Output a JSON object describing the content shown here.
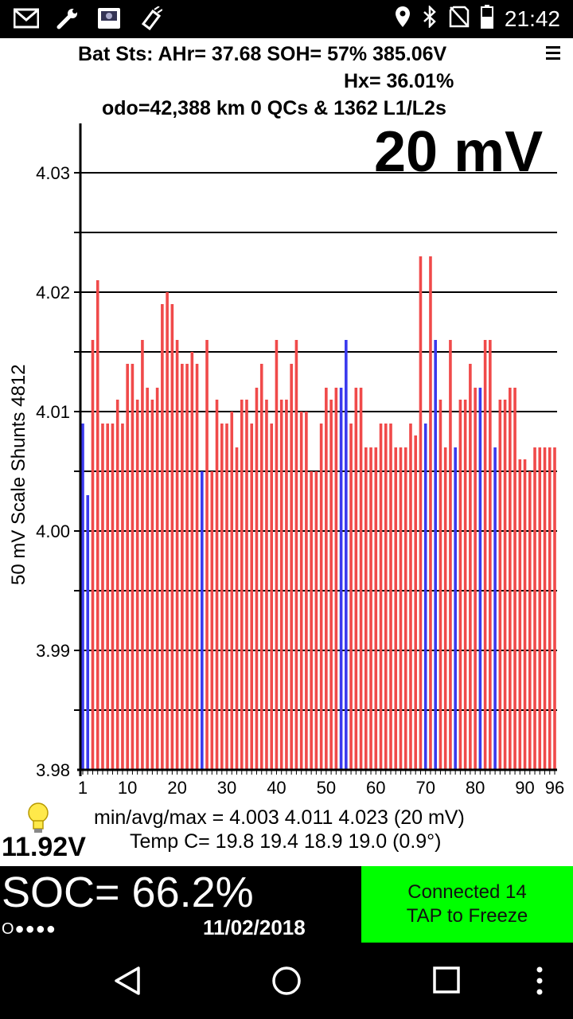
{
  "status_bar": {
    "time": "21:42",
    "left_icons": [
      "gmail-icon",
      "wrench-icon",
      "scanner-app-icon",
      "obd-dongle-icon"
    ],
    "right_icons": [
      "location-icon",
      "bluetooth-icon",
      "no-signal-icon",
      "battery-icon"
    ]
  },
  "header": {
    "line1": "Bat Sts: AHr= 37.68 SOH= 57% 385.06V",
    "line2": "Hx= 36.01%",
    "line3": "odo=42,388 km 0 QCs & 1362 L1/L2s"
  },
  "scale_label": "20 mV",
  "colors": {
    "normal_bar": "#f04a4a",
    "shunt_bar": "#3a3aee",
    "connected": "#00ff00",
    "background": "#ffffff",
    "panel": "#000000"
  },
  "chart_data": {
    "type": "bar",
    "ylabel": "50 mV Scale   Shunts 4812",
    "ylim": [
      3.98,
      4.035
    ],
    "yticks": [
      "4.03",
      "4.02",
      "4.01",
      "4.00",
      "3.99",
      "3.98"
    ],
    "gridlines": [
      3.985,
      3.99,
      3.995,
      4.0,
      4.005,
      4.01,
      4.015,
      4.02,
      4.025,
      4.03
    ],
    "xticks": [
      "1",
      "10",
      "20",
      "30",
      "40",
      "50",
      "60",
      "70",
      "80",
      "90",
      "96"
    ],
    "x_range": [
      1,
      96
    ],
    "cells": [
      1,
      2,
      3,
      4,
      5,
      6,
      7,
      8,
      9,
      10,
      11,
      12,
      13,
      14,
      15,
      16,
      17,
      18,
      19,
      20,
      21,
      22,
      23,
      24,
      25,
      26,
      27,
      28,
      29,
      30,
      31,
      32,
      33,
      34,
      35,
      36,
      37,
      38,
      39,
      40,
      41,
      42,
      43,
      44,
      45,
      46,
      47,
      48,
      49,
      50,
      51,
      52,
      53,
      54,
      55,
      56,
      57,
      58,
      59,
      60,
      61,
      62,
      63,
      64,
      65,
      66,
      67,
      68,
      69,
      70,
      71,
      72,
      73,
      74,
      75,
      76,
      77,
      78,
      79,
      80,
      81,
      82,
      83,
      84,
      85,
      86,
      87,
      88,
      89,
      90,
      91,
      92,
      93,
      94,
      95,
      96
    ],
    "voltages": [
      4.009,
      4.003,
      4.016,
      4.021,
      4.009,
      4.009,
      4.009,
      4.011,
      4.009,
      4.014,
      4.014,
      4.011,
      4.016,
      4.012,
      4.011,
      4.012,
      4.019,
      4.02,
      4.019,
      4.016,
      4.014,
      4.014,
      4.015,
      4.014,
      4.005,
      4.016,
      4.005,
      4.011,
      4.009,
      4.009,
      4.01,
      4.007,
      4.011,
      4.011,
      4.009,
      4.012,
      4.014,
      4.011,
      4.009,
      4.016,
      4.011,
      4.011,
      4.014,
      4.016,
      4.01,
      4.01,
      4.005,
      4.005,
      4.009,
      4.012,
      4.011,
      4.012,
      4.012,
      4.016,
      4.009,
      4.012,
      4.012,
      4.007,
      4.007,
      4.007,
      4.009,
      4.009,
      4.009,
      4.007,
      4.007,
      4.007,
      4.009,
      4.008,
      4.023,
      4.009,
      4.023,
      4.016,
      4.011,
      4.007,
      4.016,
      4.007,
      4.011,
      4.011,
      4.014,
      4.012,
      4.012,
      4.016,
      4.016,
      4.007,
      4.011,
      4.011,
      4.012,
      4.012,
      4.006,
      4.006,
      4.005,
      4.007,
      4.007,
      4.007,
      4.007,
      4.007
    ],
    "shunt_cells": [
      1,
      2,
      25,
      53,
      54,
      70,
      72,
      76,
      81,
      84
    ]
  },
  "stats": {
    "line1": "min/avg/max = 4.003 4.011 4.023  (20 mV)",
    "line2": "Temp C= 19.8  19.4  18.9  19.0  (0.9°)"
  },
  "aux_voltage": "11.92V",
  "soc": {
    "text": "SOC= 66.2%",
    "dots": "O●●●●",
    "date": "11/02/2018"
  },
  "connect_button": {
    "line1": "Connected 14",
    "line2": "TAP to Freeze"
  },
  "nav": {
    "back": "back-icon",
    "home": "home-icon",
    "recents": "recents-icon",
    "overflow": "overflow-menu-icon"
  }
}
